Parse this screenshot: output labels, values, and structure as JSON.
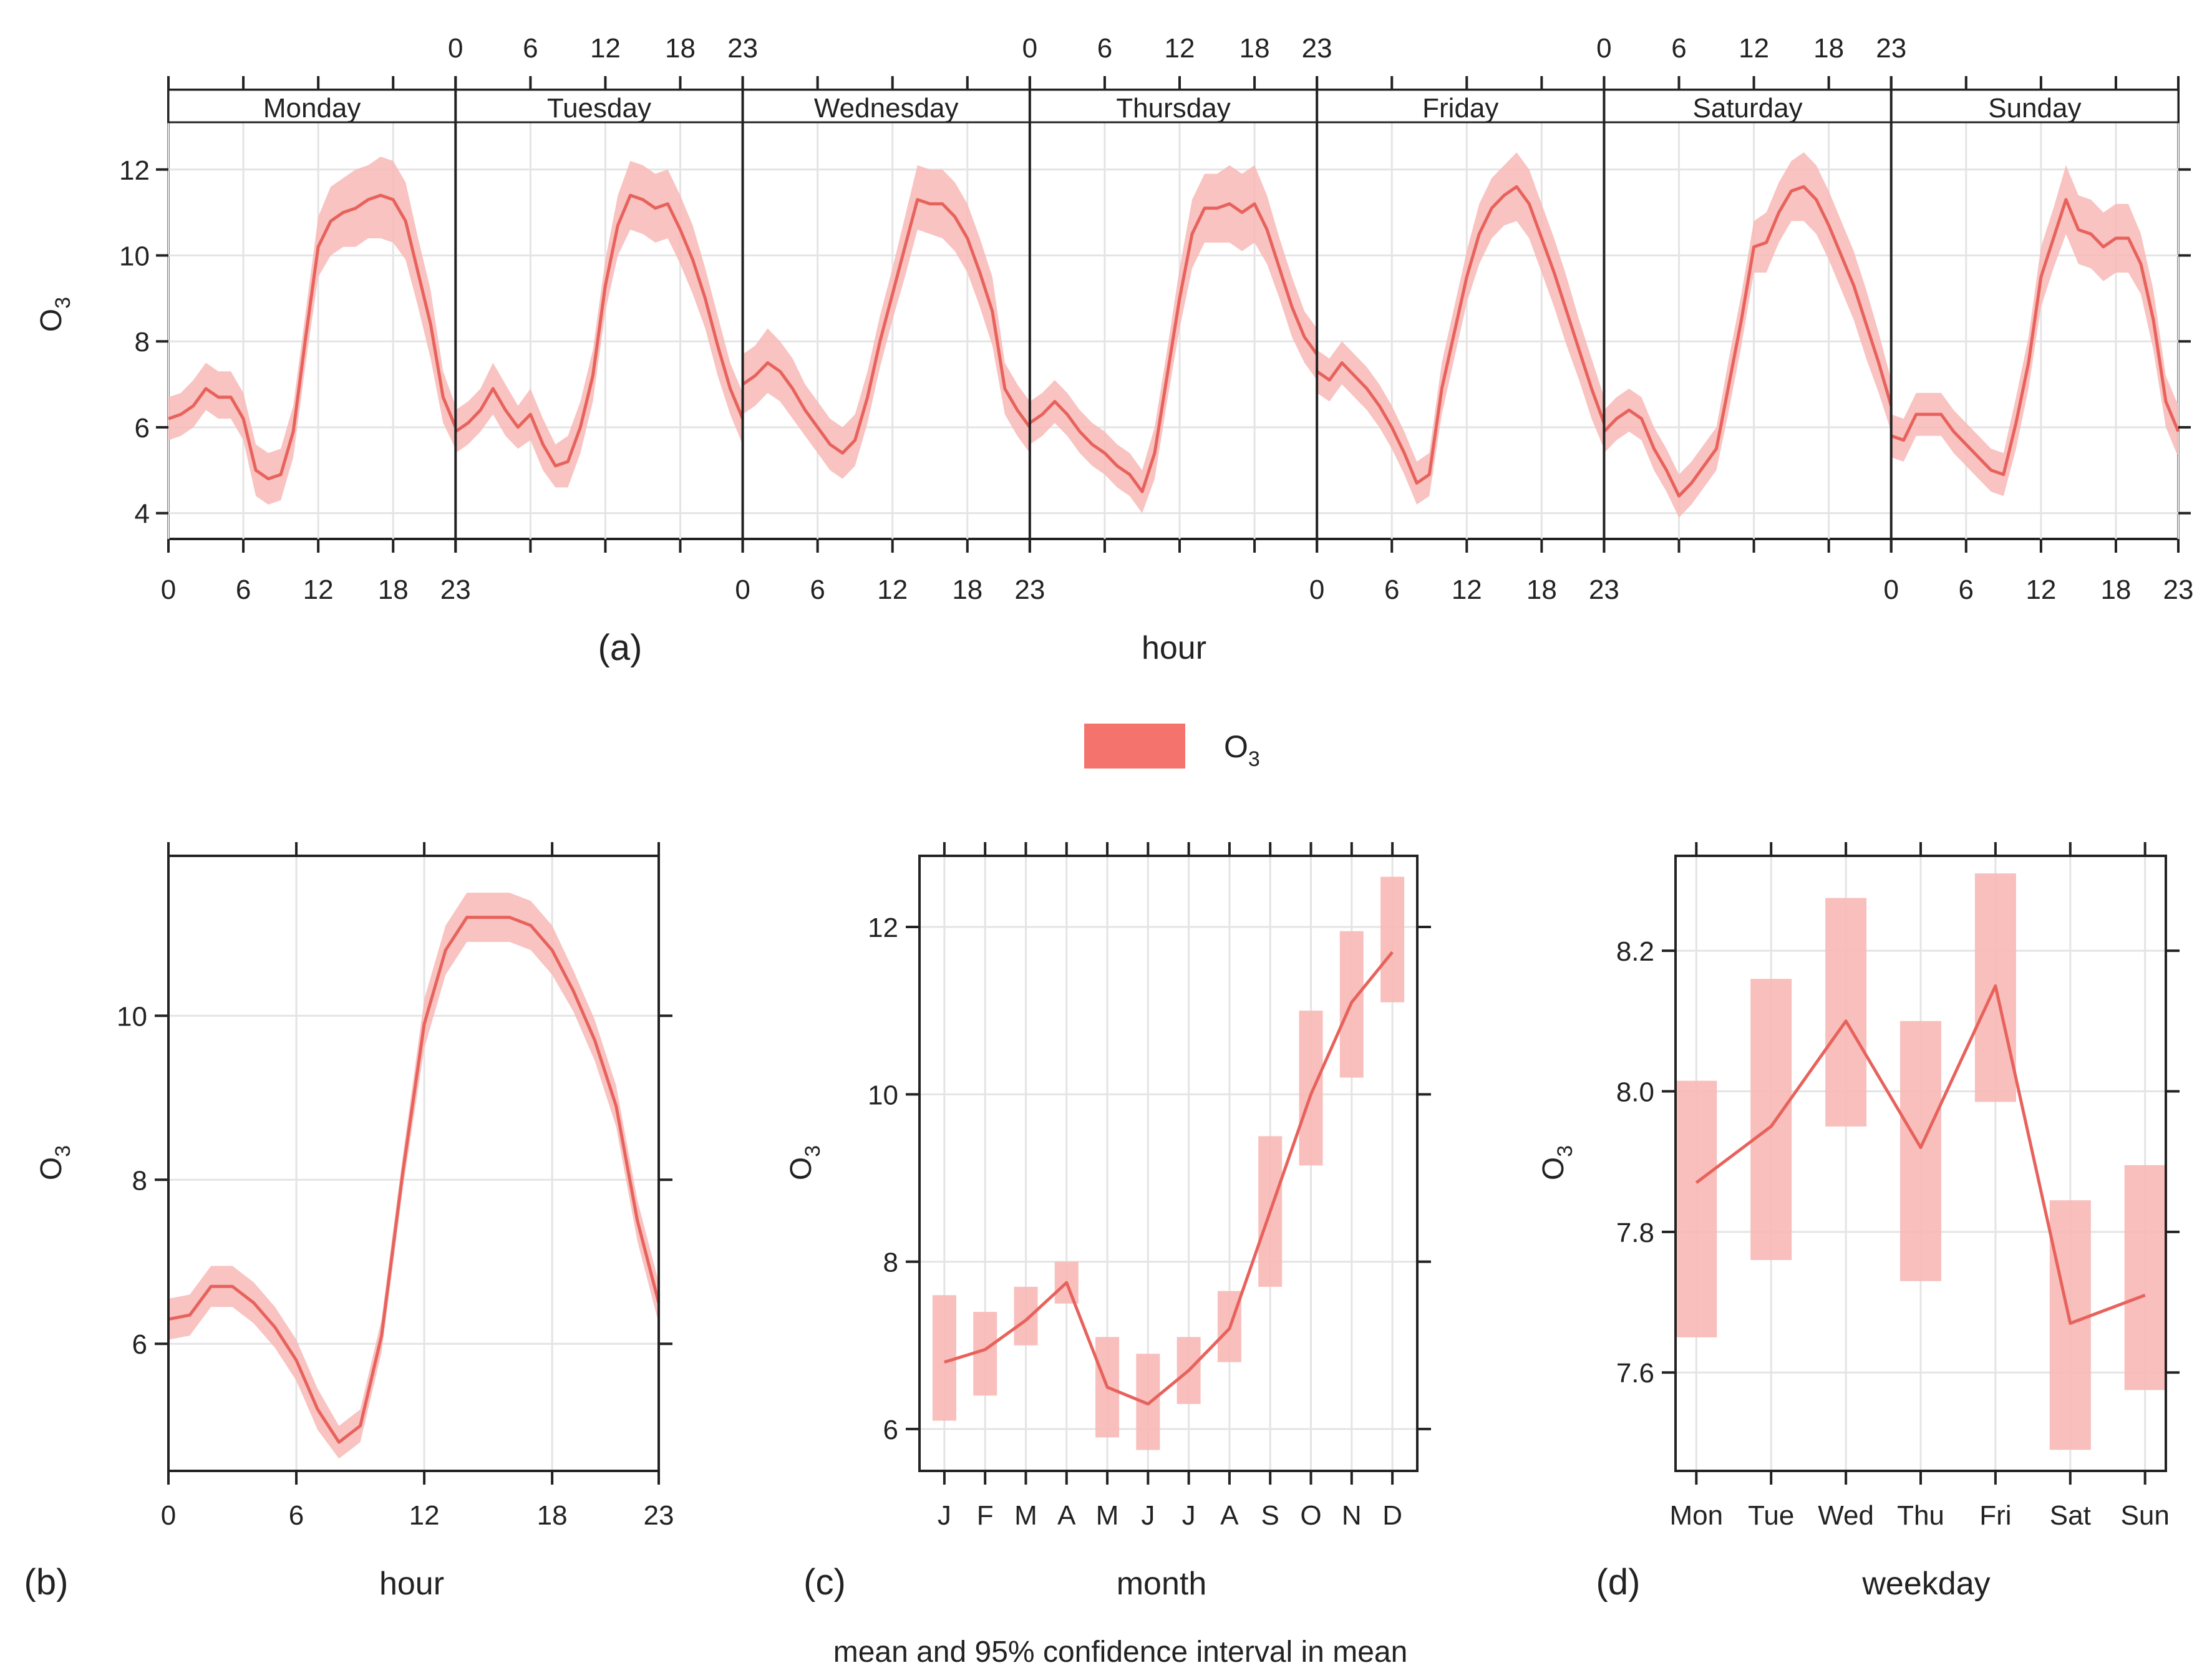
{
  "figure": {
    "title": "mean and 95% confidence interval in mean",
    "legend_label": "O",
    "legend_label_sub": "3",
    "colors": {
      "line": "#e8625c",
      "band": "#f7b8b6",
      "legend": "#f4736c",
      "axis": "#222222",
      "grid": "#e4e4e4"
    }
  },
  "chart_data": [
    {
      "id": "a",
      "type": "line",
      "panel_label": "(a)",
      "title": "",
      "xlabel": "hour",
      "ylabel": "O",
      "ylabel_sub": "3",
      "ylim": [
        3.4,
        13.1
      ],
      "yticks": [
        4,
        6,
        8,
        10,
        12
      ],
      "xticks": [
        0,
        6,
        12,
        18,
        23
      ],
      "xlim": [
        0,
        23
      ],
      "legend": "bottom-center",
      "grid": true,
      "facets": [
        {
          "name": "Monday",
          "mean": [
            6.2,
            6.3,
            6.5,
            6.9,
            6.7,
            6.7,
            6.2,
            5.0,
            4.8,
            4.9,
            5.9,
            8.1,
            10.2,
            10.8,
            11.0,
            11.1,
            11.3,
            11.4,
            11.3,
            10.8,
            9.6,
            8.4,
            6.7,
            6.0
          ],
          "lower": [
            5.7,
            5.8,
            6.0,
            6.4,
            6.2,
            6.2,
            5.7,
            4.4,
            4.2,
            4.3,
            5.3,
            7.5,
            9.5,
            10.0,
            10.2,
            10.2,
            10.4,
            10.4,
            10.3,
            9.9,
            8.8,
            7.6,
            6.1,
            5.5
          ],
          "upper": [
            6.7,
            6.8,
            7.1,
            7.5,
            7.3,
            7.3,
            6.8,
            5.6,
            5.4,
            5.5,
            6.5,
            8.7,
            10.9,
            11.6,
            11.8,
            12.0,
            12.1,
            12.3,
            12.2,
            11.7,
            10.4,
            9.2,
            7.3,
            6.5
          ]
        },
        {
          "name": "Tuesday",
          "mean": [
            5.9,
            6.1,
            6.4,
            6.9,
            6.4,
            6.0,
            6.3,
            5.6,
            5.1,
            5.2,
            6.0,
            7.2,
            9.3,
            10.7,
            11.4,
            11.3,
            11.1,
            11.2,
            10.6,
            9.9,
            9.0,
            7.9,
            6.9,
            6.2
          ],
          "lower": [
            5.4,
            5.6,
            5.9,
            6.3,
            5.8,
            5.5,
            5.7,
            5.0,
            4.6,
            4.6,
            5.4,
            6.6,
            8.7,
            10.0,
            10.6,
            10.5,
            10.3,
            10.4,
            9.8,
            9.1,
            8.3,
            7.2,
            6.3,
            5.6
          ],
          "upper": [
            6.4,
            6.6,
            6.9,
            7.5,
            7.0,
            6.5,
            6.9,
            6.2,
            5.6,
            5.8,
            6.6,
            7.8,
            9.9,
            11.4,
            12.2,
            12.1,
            11.9,
            12.0,
            11.4,
            10.7,
            9.7,
            8.6,
            7.5,
            6.8
          ]
        },
        {
          "name": "Wednesday",
          "mean": [
            7.0,
            7.2,
            7.5,
            7.3,
            6.9,
            6.4,
            6.0,
            5.6,
            5.4,
            5.7,
            6.7,
            8.0,
            9.1,
            10.2,
            11.3,
            11.2,
            11.2,
            10.9,
            10.4,
            9.6,
            8.7,
            6.9,
            6.4,
            6.0
          ],
          "lower": [
            6.3,
            6.5,
            6.8,
            6.6,
            6.2,
            5.8,
            5.4,
            5.0,
            4.8,
            5.1,
            6.1,
            7.4,
            8.5,
            9.5,
            10.6,
            10.5,
            10.4,
            10.1,
            9.6,
            8.8,
            7.9,
            6.3,
            5.8,
            5.4
          ],
          "upper": [
            7.7,
            7.9,
            8.3,
            8.0,
            7.6,
            7.0,
            6.6,
            6.2,
            6.0,
            6.3,
            7.3,
            8.6,
            9.7,
            10.9,
            12.1,
            12.0,
            12.0,
            11.7,
            11.2,
            10.4,
            9.5,
            7.5,
            7.0,
            6.6
          ]
        },
        {
          "name": "Thursday",
          "mean": [
            6.1,
            6.3,
            6.6,
            6.3,
            5.9,
            5.6,
            5.4,
            5.1,
            4.9,
            4.5,
            5.4,
            7.2,
            9.0,
            10.5,
            11.1,
            11.1,
            11.2,
            11.0,
            11.2,
            10.6,
            9.7,
            8.8,
            8.1,
            7.7
          ],
          "lower": [
            5.6,
            5.8,
            6.1,
            5.8,
            5.4,
            5.1,
            4.9,
            4.6,
            4.4,
            4.0,
            4.8,
            6.6,
            8.3,
            9.7,
            10.3,
            10.3,
            10.3,
            10.1,
            10.3,
            9.8,
            9.0,
            8.1,
            7.5,
            7.1
          ],
          "upper": [
            6.6,
            6.8,
            7.1,
            6.8,
            6.4,
            6.1,
            5.9,
            5.6,
            5.4,
            5.0,
            6.0,
            7.8,
            9.7,
            11.3,
            11.9,
            11.9,
            12.1,
            11.9,
            12.1,
            11.4,
            10.4,
            9.5,
            8.7,
            8.3
          ]
        },
        {
          "name": "Friday",
          "mean": [
            7.3,
            7.1,
            7.5,
            7.2,
            6.9,
            6.5,
            6.0,
            5.4,
            4.7,
            4.9,
            6.9,
            8.2,
            9.5,
            10.5,
            11.1,
            11.4,
            11.6,
            11.2,
            10.4,
            9.6,
            8.7,
            7.8,
            6.9,
            6.1
          ],
          "lower": [
            6.8,
            6.6,
            7.0,
            6.7,
            6.4,
            6.0,
            5.5,
            4.9,
            4.2,
            4.4,
            6.3,
            7.6,
            8.9,
            9.8,
            10.4,
            10.7,
            10.8,
            10.4,
            9.6,
            8.8,
            7.9,
            7.1,
            6.2,
            5.5
          ],
          "upper": [
            7.8,
            7.6,
            8.0,
            7.7,
            7.4,
            7.0,
            6.5,
            5.9,
            5.2,
            5.4,
            7.5,
            8.8,
            10.1,
            11.2,
            11.8,
            12.1,
            12.4,
            12.0,
            11.2,
            10.4,
            9.5,
            8.5,
            7.6,
            6.7
          ]
        },
        {
          "name": "Saturday",
          "mean": [
            5.9,
            6.2,
            6.4,
            6.2,
            5.5,
            5.0,
            4.4,
            4.7,
            5.1,
            5.5,
            7.0,
            8.5,
            10.2,
            10.3,
            11.0,
            11.5,
            11.6,
            11.3,
            10.7,
            10.0,
            9.3,
            8.4,
            7.5,
            6.5
          ],
          "lower": [
            5.4,
            5.7,
            5.9,
            5.7,
            5.0,
            4.5,
            3.9,
            4.2,
            4.6,
            5.0,
            6.4,
            7.9,
            9.6,
            9.6,
            10.3,
            10.8,
            10.8,
            10.5,
            9.9,
            9.2,
            8.5,
            7.6,
            6.8,
            5.9
          ],
          "upper": [
            6.4,
            6.7,
            6.9,
            6.7,
            6.0,
            5.5,
            4.9,
            5.2,
            5.6,
            6.0,
            7.6,
            9.1,
            10.8,
            11.0,
            11.7,
            12.2,
            12.4,
            12.1,
            11.5,
            10.8,
            10.1,
            9.2,
            8.2,
            7.1
          ]
        },
        {
          "name": "Sunday",
          "mean": [
            5.8,
            5.7,
            6.3,
            6.3,
            6.3,
            5.9,
            5.6,
            5.3,
            5.0,
            4.9,
            6.1,
            7.5,
            9.5,
            10.4,
            11.3,
            10.6,
            10.5,
            10.2,
            10.4,
            10.4,
            9.8,
            8.5,
            6.6,
            5.9
          ],
          "lower": [
            5.3,
            5.2,
            5.8,
            5.8,
            5.8,
            5.4,
            5.1,
            4.8,
            4.5,
            4.4,
            5.5,
            6.9,
            8.8,
            9.7,
            10.5,
            9.8,
            9.7,
            9.4,
            9.6,
            9.6,
            9.1,
            7.8,
            6.0,
            5.3
          ],
          "upper": [
            6.3,
            6.2,
            6.8,
            6.8,
            6.8,
            6.4,
            6.1,
            5.8,
            5.5,
            5.4,
            6.7,
            8.1,
            10.2,
            11.1,
            12.1,
            11.4,
            11.3,
            11.0,
            11.2,
            11.2,
            10.5,
            9.2,
            7.2,
            6.5
          ]
        }
      ]
    },
    {
      "id": "b",
      "type": "line",
      "panel_label": "(b)",
      "title": "",
      "xlabel": "hour",
      "ylabel": "O",
      "ylabel_sub": "3",
      "ylim": [
        4.45,
        11.95
      ],
      "yticks": [
        6,
        8,
        10
      ],
      "xticks": [
        0,
        6,
        12,
        18,
        23
      ],
      "xlim": [
        0,
        23
      ],
      "grid": true,
      "x": [
        0,
        1,
        2,
        3,
        4,
        5,
        6,
        7,
        8,
        9,
        10,
        11,
        12,
        13,
        14,
        15,
        16,
        17,
        18,
        19,
        20,
        21,
        22,
        23
      ],
      "mean": [
        6.3,
        6.35,
        6.7,
        6.7,
        6.5,
        6.2,
        5.8,
        5.2,
        4.8,
        5.0,
        6.1,
        8.1,
        9.9,
        10.8,
        11.2,
        11.2,
        11.2,
        11.1,
        10.8,
        10.3,
        9.7,
        8.9,
        7.5,
        6.5
      ],
      "lower": [
        6.05,
        6.1,
        6.45,
        6.45,
        6.25,
        5.95,
        5.55,
        4.95,
        4.6,
        4.8,
        5.9,
        7.9,
        9.6,
        10.5,
        10.9,
        10.9,
        10.9,
        10.8,
        10.5,
        10.05,
        9.45,
        8.65,
        7.25,
        6.25
      ],
      "upper": [
        6.55,
        6.6,
        6.95,
        6.95,
        6.75,
        6.45,
        6.05,
        5.45,
        5.0,
        5.2,
        6.3,
        8.3,
        10.2,
        11.1,
        11.5,
        11.5,
        11.5,
        11.4,
        11.1,
        10.55,
        9.95,
        9.15,
        7.75,
        6.75
      ]
    },
    {
      "id": "c",
      "type": "line",
      "panel_label": "(c)",
      "title": "",
      "xlabel": "month",
      "ylabel": "O",
      "ylabel_sub": "3",
      "ylim": [
        5.5,
        12.85
      ],
      "yticks": [
        6,
        8,
        10,
        12
      ],
      "grid": true,
      "categories": [
        "J",
        "F",
        "M",
        "A",
        "M",
        "J",
        "J",
        "A",
        "S",
        "O",
        "N",
        "D"
      ],
      "mean": [
        6.8,
        6.95,
        7.3,
        7.75,
        6.5,
        6.3,
        6.7,
        7.2,
        8.6,
        10.0,
        11.1,
        11.7
      ],
      "lower": [
        6.1,
        6.4,
        7.0,
        7.5,
        5.9,
        5.75,
        6.3,
        6.8,
        7.7,
        9.15,
        10.2,
        11.1
      ],
      "upper": [
        7.6,
        7.4,
        7.7,
        8.0,
        7.1,
        6.9,
        7.1,
        7.65,
        9.5,
        11.0,
        11.95,
        12.6
      ]
    },
    {
      "id": "d",
      "type": "line",
      "panel_label": "(d)",
      "title": "",
      "xlabel": "weekday",
      "ylabel": "O",
      "ylabel_sub": "3",
      "ylim": [
        7.46,
        8.335
      ],
      "yticks": [
        7.6,
        7.8,
        8.0,
        8.2
      ],
      "ytick_labels": [
        "7.6",
        "7.8",
        "8.0",
        "8.2"
      ],
      "grid": true,
      "categories": [
        "Mon",
        "Tue",
        "Wed",
        "Thu",
        "Fri",
        "Sat",
        "Sun"
      ],
      "mean": [
        7.87,
        7.95,
        8.1,
        7.92,
        8.15,
        7.67,
        7.71
      ],
      "lower": [
        7.65,
        7.76,
        7.95,
        7.73,
        7.985,
        7.49,
        7.575
      ],
      "upper": [
        8.015,
        8.16,
        8.275,
        8.1,
        8.31,
        7.845,
        7.895
      ]
    }
  ]
}
